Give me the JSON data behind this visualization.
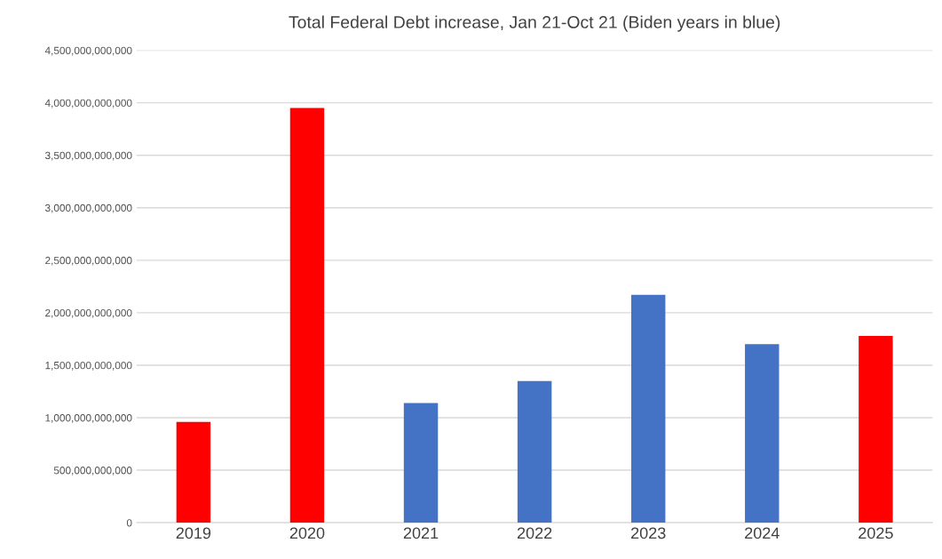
{
  "chart_data": {
    "type": "bar",
    "title": "Total Federal Debt increase, Jan 21-Oct 21 (Biden years in blue)",
    "categories": [
      "2019",
      "2020",
      "2021",
      "2022",
      "2023",
      "2024",
      "2025"
    ],
    "values": [
      960000000000,
      3950000000000,
      1140000000000,
      1350000000000,
      2170000000000,
      1700000000000,
      1780000000000
    ],
    "colors": [
      "#ff0000",
      "#ff0000",
      "#4472c4",
      "#4472c4",
      "#4472c4",
      "#4472c4",
      "#ff0000"
    ],
    "ylim": [
      0,
      4500000000000
    ],
    "yticks": [
      {
        "value": 0,
        "label": "0"
      },
      {
        "value": 500000000000,
        "label": "500,000,000,000"
      },
      {
        "value": 1000000000000,
        "label": "1,000,000,000,000"
      },
      {
        "value": 1500000000000,
        "label": "1,500,000,000,000"
      },
      {
        "value": 2000000000000,
        "label": "2,000,000,000,000"
      },
      {
        "value": 2500000000000,
        "label": "2,500,000,000,000"
      },
      {
        "value": 3000000000000,
        "label": "3,000,000,000,000"
      },
      {
        "value": 3500000000000,
        "label": "3,500,000,000,000"
      },
      {
        "value": 4000000000000,
        "label": "4,000,000,000,000"
      },
      {
        "value": 4500000000000,
        "label": "4,500,000,000,000"
      }
    ],
    "grid": "y",
    "legend": false
  }
}
